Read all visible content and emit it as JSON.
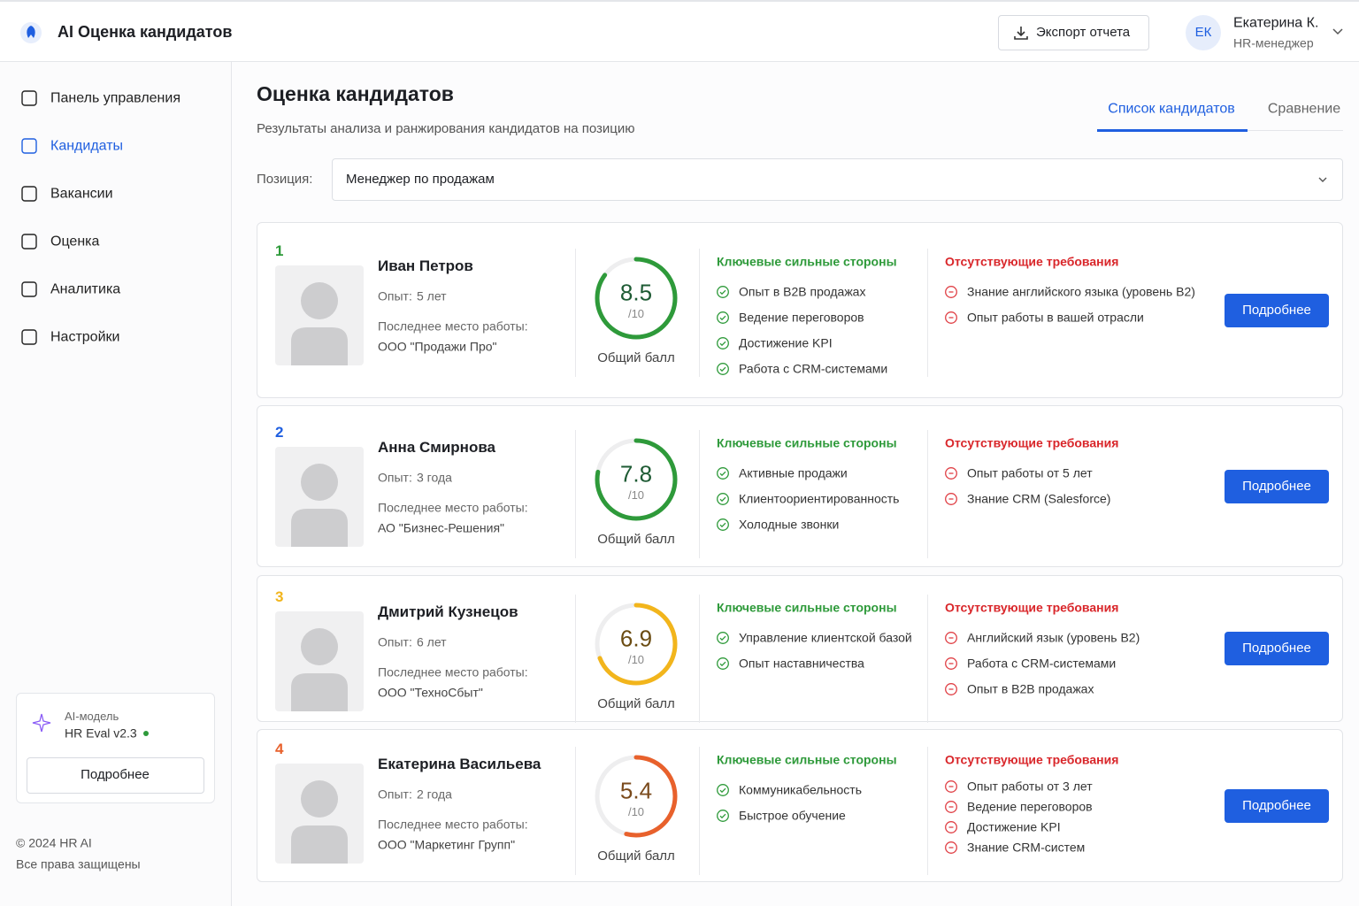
{
  "header": {
    "app_title": "AI Оценка кандидатов",
    "export_button": "Экспорт отчета",
    "user": {
      "initials": "ЕК",
      "name": "Екатерина К.",
      "role": "HR-менеджер"
    }
  },
  "sidebar": {
    "nav": [
      {
        "label": "Панель управления"
      },
      {
        "label": "Кандидаты",
        "active": true
      },
      {
        "label": "Вакансии"
      },
      {
        "label": "Оценка"
      },
      {
        "label": "Аналитика"
      },
      {
        "label": "Настройки"
      }
    ],
    "model_card": {
      "caption": "AI-модель",
      "name": "HR Eval v2.3",
      "button": "Подробнее"
    },
    "footer": [
      "© 2024 HR AI",
      "Все права защищены"
    ]
  },
  "page": {
    "title": "Оценка кандидатов",
    "subtitle": "Результаты анализа и ранжирования кандидатов на позицию",
    "tabs": [
      {
        "label": "Список кандидатов",
        "active": true
      },
      {
        "label": "Сравнение"
      }
    ],
    "position_label": "Позиция:",
    "position_value": "Менеджер по продажам"
  },
  "labels": {
    "experience_prefix": "Опыт:",
    "last_job_label": "Последнее место работы:",
    "score_caption": "Общий балл",
    "strengths_title": "Ключевые сильные стороны",
    "missing_title": "Отсутствующие требования",
    "details_button": "Подробнее"
  },
  "score_scale": {
    "value": 10,
    "label": "/10"
  },
  "candidates": [
    {
      "rank": 1,
      "color": "#2e9a3a",
      "name": "Иван Петров",
      "experience": "5 лет",
      "last_job": "ООО \"Продажи Про\"",
      "score": 8.5,
      "strengths": [
        "Опыт в B2B продажах",
        "Ведение переговоров",
        "Достижение KPI",
        "Работа с CRM-системами"
      ],
      "missing": [
        "Знание английского языка (уровень B2)",
        "Опыт работы в вашей отрасли"
      ]
    },
    {
      "rank": 2,
      "color": "#2e9a3a",
      "name": "Анна Смирнова",
      "experience": "3 года",
      "last_job": "АО \"Бизнес-Решения\"",
      "score": 7.8,
      "strengths": [
        "Активные продажи",
        "Клиентоориентированность",
        "Холодные звонки"
      ],
      "missing": [
        "Опыт работы от 5 лет",
        "Знание CRM (Salesforce)"
      ]
    },
    {
      "rank": 3,
      "color": "#f2b51c",
      "name": "Дмитрий Кузнецов",
      "experience": "6 лет",
      "last_job": "ООО \"ТехноСбыт\"",
      "score": 6.9,
      "strengths": [
        "Управление клиентской базой",
        "Опыт наставничества"
      ],
      "missing": [
        "Английский язык (уровень B2)",
        "Работа с CRM-системами",
        "Опыт в B2B продажах"
      ]
    },
    {
      "rank": 4,
      "color": "#e8612c",
      "name": "Екатерина Васильева",
      "experience": "2 года",
      "last_job": "ООО \"Маркетинг Групп\"",
      "score": 5.4,
      "strengths": [
        "Коммуникабельность",
        "Быстрое обучение"
      ],
      "missing": [
        "Опыт работы от 3 лет",
        "Ведение переговоров",
        "Достижение KPI",
        "Знание CRM-систем"
      ]
    }
  ]
}
